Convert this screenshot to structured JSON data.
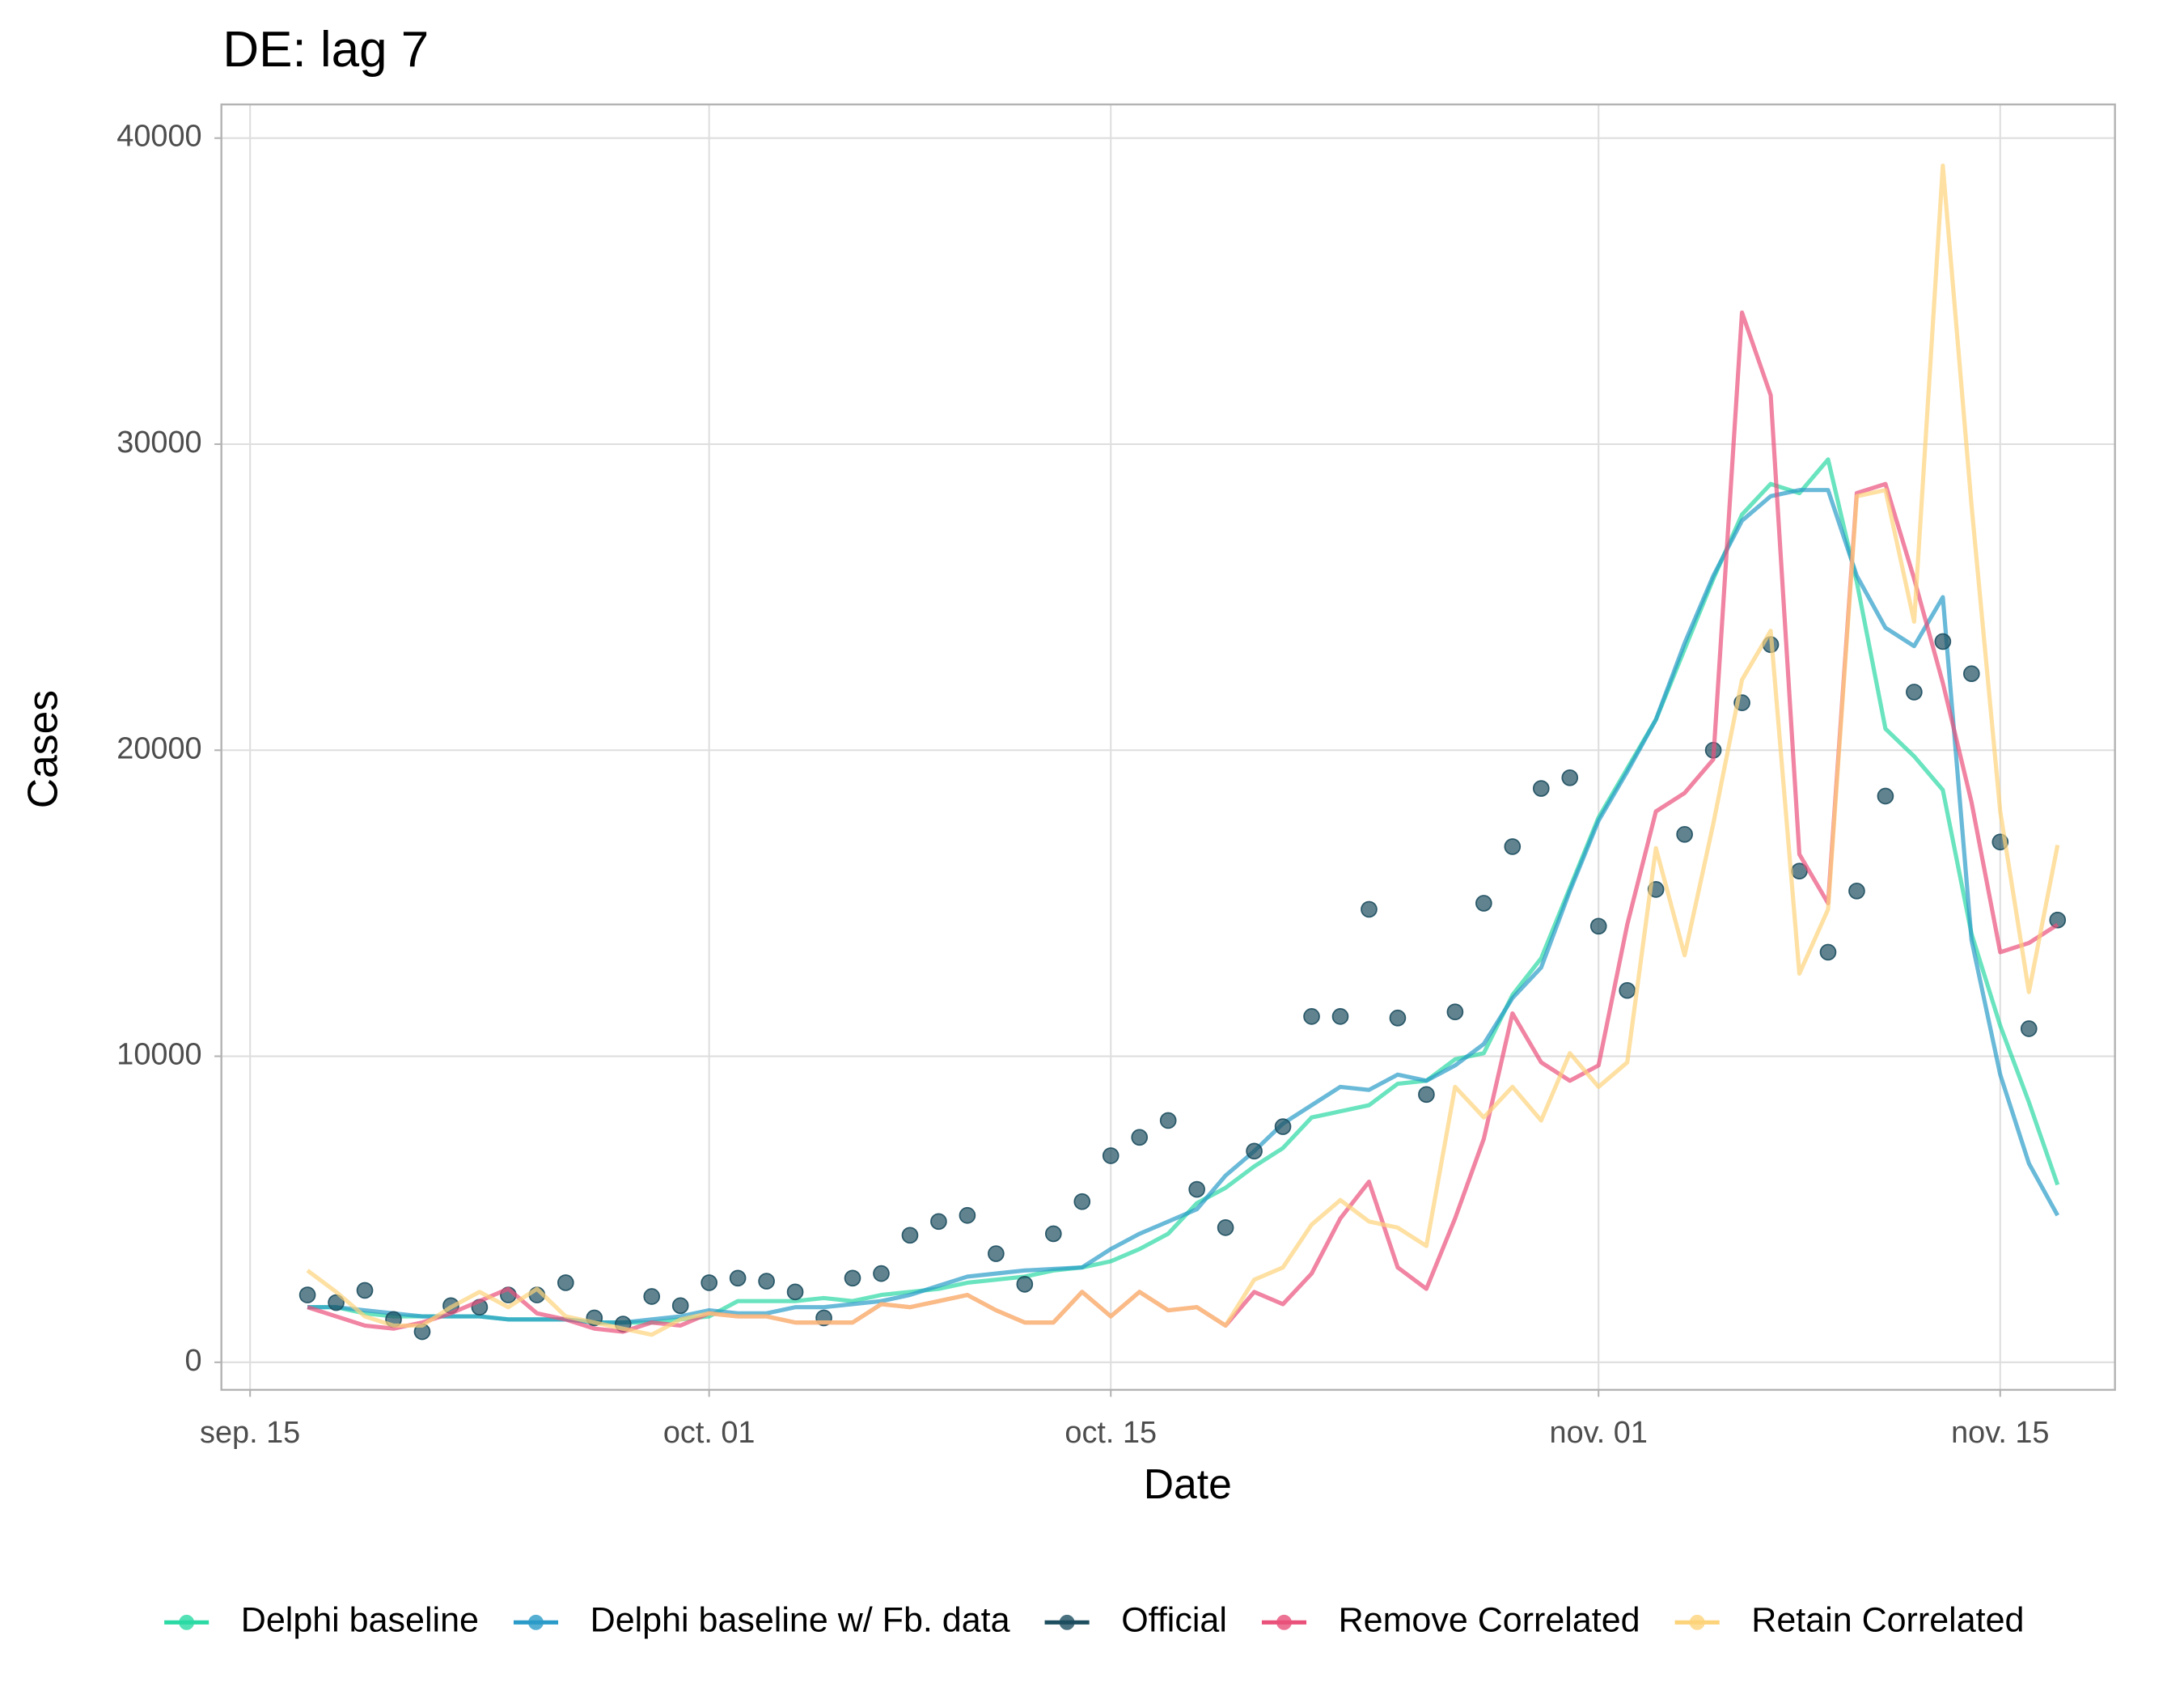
{
  "chart_data": {
    "type": "line",
    "title": "DE: lag 7",
    "x_label": "Date",
    "y_label": "Cases",
    "x": [
      "09-17",
      "09-18",
      "09-19",
      "09-20",
      "09-21",
      "09-22",
      "09-23",
      "09-24",
      "09-25",
      "09-26",
      "09-27",
      "09-28",
      "09-29",
      "09-30",
      "10-01",
      "10-02",
      "10-03",
      "10-04",
      "10-05",
      "10-06",
      "10-07",
      "10-08",
      "10-09",
      "10-10",
      "10-11",
      "10-12",
      "10-13",
      "10-14",
      "10-15",
      "10-16",
      "10-17",
      "10-18",
      "10-19",
      "10-20",
      "10-21",
      "10-22",
      "10-23",
      "10-24",
      "10-25",
      "10-26",
      "10-27",
      "10-28",
      "10-29",
      "10-30",
      "10-31",
      "11-01",
      "11-02",
      "11-03",
      "11-04",
      "11-05",
      "11-06",
      "11-07",
      "11-08",
      "11-09",
      "11-10",
      "11-11",
      "11-12",
      "11-13",
      "11-14",
      "11-15",
      "11-16",
      "11-17"
    ],
    "xlim": [
      "09-14",
      "11-19"
    ],
    "xticks": [
      {
        "value": "09-15",
        "label": "sep. 15"
      },
      {
        "value": "10-01",
        "label": "oct. 01"
      },
      {
        "value": "10-15",
        "label": "oct. 15"
      },
      {
        "value": "11-01",
        "label": "nov. 01"
      },
      {
        "value": "11-15",
        "label": "nov. 15"
      }
    ],
    "ylim": [
      -900,
      41100
    ],
    "yticks": [
      0,
      10000,
      20000,
      30000,
      40000
    ],
    "grid": true,
    "legend_position": "bottom",
    "series": [
      {
        "name": "Delphi baseline",
        "color": "#2bd9a4",
        "mode": "lines",
        "values": [
          1800,
          1800,
          1600,
          1500,
          1500,
          1500,
          1500,
          1400,
          1400,
          1400,
          1300,
          1300,
          1300,
          1400,
          1500,
          2000,
          2000,
          2000,
          2100,
          2000,
          2200,
          2300,
          2400,
          2600,
          2700,
          2800,
          3000,
          3100,
          3300,
          3700,
          4200,
          5200,
          5700,
          6400,
          7000,
          8000,
          8200,
          8400,
          9100,
          9200,
          9900,
          10100,
          12000,
          13200,
          15500,
          17800,
          19400,
          21000,
          23300,
          25600,
          27700,
          28700,
          28400,
          29500,
          25500,
          20700,
          19800,
          18700,
          14000,
          11000,
          8500,
          5800
        ]
      },
      {
        "name": "Delphi baseline w/ Fb. data",
        "color": "#2a9bc8",
        "mode": "lines",
        "values": [
          1800,
          1800,
          1700,
          1600,
          1500,
          1500,
          1500,
          1400,
          1400,
          1400,
          1300,
          1300,
          1400,
          1500,
          1700,
          1600,
          1600,
          1800,
          1800,
          1900,
          2000,
          2200,
          2500,
          2800,
          2900,
          3000,
          3050,
          3100,
          3700,
          4200,
          4600,
          5000,
          6100,
          6900,
          7800,
          8400,
          9000,
          8900,
          9400,
          9200,
          9700,
          10400,
          11900,
          12900,
          15400,
          17700,
          19300,
          21000,
          23500,
          25700,
          27500,
          28300,
          28500,
          28500,
          25700,
          24000,
          23400,
          25000,
          13800,
          9400,
          6500,
          4800
        ]
      },
      {
        "name": "Official",
        "color": "#1d4e5f",
        "mode": "markers",
        "values": [
          2200,
          1950,
          2350,
          1400,
          1000,
          1850,
          1800,
          2200,
          2200,
          2600,
          1450,
          1250,
          2150,
          1850,
          2600,
          2750,
          2650,
          2300,
          1450,
          2750,
          2900,
          4150,
          4600,
          4800,
          3550,
          2550,
          4200,
          5250,
          6750,
          7350,
          7900,
          5650,
          4400,
          6900,
          7700,
          11300,
          11300,
          14800,
          11250,
          8750,
          11450,
          15000,
          16850,
          18750,
          19100,
          14250,
          12150,
          15450,
          17250,
          20000,
          21550,
          23450,
          16050,
          13400,
          15400,
          18500,
          21900,
          23550,
          22500,
          17000,
          10900,
          14450
        ]
      },
      {
        "name": "Remove Correlated",
        "color": "#e9507a",
        "mode": "lines",
        "values": [
          1800,
          1500,
          1200,
          1100,
          1300,
          1600,
          2000,
          2400,
          1600,
          1400,
          1100,
          1000,
          1300,
          1200,
          1600,
          1500,
          1500,
          1300,
          1300,
          1300,
          1900,
          1800,
          2000,
          2200,
          1700,
          1300,
          1300,
          2300,
          1500,
          2300,
          1700,
          1800,
          1200,
          2300,
          1900,
          2900,
          4700,
          5900,
          3100,
          2400,
          4700,
          7300,
          11400,
          9800,
          9200,
          9700,
          14300,
          18000,
          18600,
          19700,
          34300,
          31600,
          16600,
          15000,
          28400,
          28700,
          25600,
          22200,
          18300,
          13400,
          13700,
          14300
        ]
      },
      {
        "name": "Retain Correlated",
        "color": "#fdd37a",
        "mode": "lines",
        "values": [
          3000,
          2300,
          1500,
          1200,
          1200,
          1800,
          2300,
          1800,
          2400,
          1500,
          1300,
          1100,
          900,
          1400,
          1600,
          1500,
          1500,
          1300,
          1300,
          1300,
          1900,
          1800,
          2000,
          2200,
          1700,
          1300,
          1300,
          2300,
          1500,
          2300,
          1700,
          1800,
          1200,
          2700,
          3100,
          4500,
          5300,
          4600,
          4400,
          3800,
          9000,
          8000,
          9000,
          7900,
          10100,
          9000,
          9800,
          16800,
          13300,
          17600,
          22300,
          23900,
          12700,
          14800,
          28300,
          28500,
          24200,
          39100,
          28000,
          18000,
          12100,
          16900
        ]
      }
    ]
  }
}
